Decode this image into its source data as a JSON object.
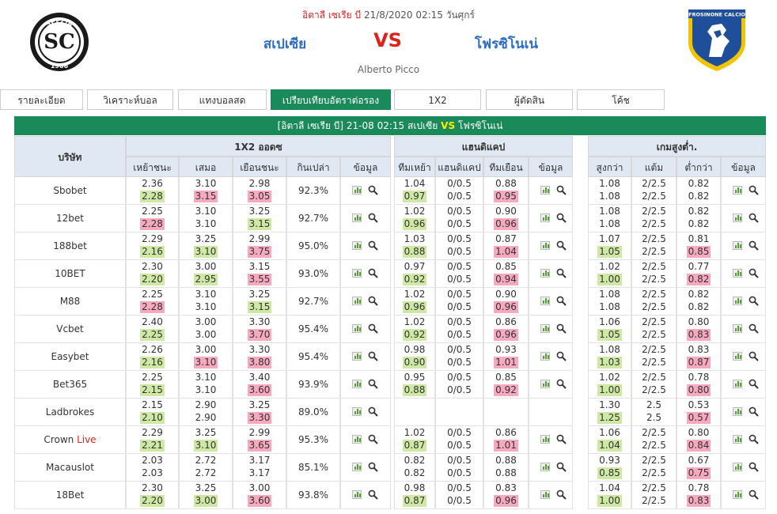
{
  "header": {
    "league": "อิตาลี เซเรีย บี",
    "datetime": "21/8/2020 02:15 วันศุกร์",
    "home_team": "สเปเซีย",
    "vs": "VS",
    "away_team": "โฟรซิโนเน่",
    "stadium": "Alberto Picco",
    "home_logo_text": "SPEZIA",
    "home_logo_year": "1906",
    "away_logo_text": "FROSINONE CALCIO"
  },
  "tabs": [
    {
      "label": "รายละเอียด",
      "active": false
    },
    {
      "label": "วิเคราะห์บอล",
      "active": false
    },
    {
      "label": "แทงบอลสด",
      "active": false
    },
    {
      "label": "เปรียบเทียบอัตราต่อรอง",
      "active": true
    },
    {
      "label": "1X2",
      "active": false
    },
    {
      "label": "ผู้ตัดสิน",
      "active": false
    },
    {
      "label": "โค้ช",
      "active": false
    }
  ],
  "title_bar": {
    "prefix": "[อิตาลี เซเรีย บี]  21-08 02:15  สเปเซีย",
    "vs": "VS",
    "suffix": "โฟรซิโนเน่"
  },
  "table": {
    "company_header": "บริษัท",
    "groups": [
      "1X2 ออดซ",
      "แฮนดิแคป",
      "เกมสูงต่ำ."
    ],
    "sub_headers": [
      "เหย้าชนะ",
      "เสมอ",
      "เยือนชนะ",
      "กินเปล่า",
      "ข้อมูล",
      "ทีมเหย้า",
      "แฮนดิแคป",
      "ทีมเยือน",
      "ข้อมูล",
      "สูงกว่า",
      "แต้ม",
      "ต่ำกว่า",
      "ข้อมูล"
    ],
    "rows": [
      {
        "company": "Sbobet",
        "live": "",
        "x12": [
          [
            "2.36",
            "2.28",
            "up"
          ],
          [
            "3.10",
            "3.15",
            "down"
          ],
          [
            "2.98",
            "3.05",
            "down"
          ]
        ],
        "payout": "92.3%",
        "hcap": [
          [
            "1.04",
            "0.97",
            "up"
          ],
          [
            "0/0.5",
            "0/0.5",
            ""
          ],
          [
            "0.88",
            "0.95",
            "down"
          ]
        ],
        "ou": [
          [
            "1.08",
            "1.08",
            ""
          ],
          [
            "2/2.5",
            "2/2.5",
            ""
          ],
          [
            "0.82",
            "0.82",
            ""
          ]
        ]
      },
      {
        "company": "12bet",
        "live": "",
        "x12": [
          [
            "2.25",
            "2.28",
            "down"
          ],
          [
            "3.10",
            "3.10",
            ""
          ],
          [
            "3.25",
            "3.15",
            "up"
          ]
        ],
        "payout": "92.7%",
        "hcap": [
          [
            "1.02",
            "0.96",
            "up"
          ],
          [
            "0/0.5",
            "0/0.5",
            ""
          ],
          [
            "0.90",
            "0.96",
            "down"
          ]
        ],
        "ou": [
          [
            "1.08",
            "1.08",
            ""
          ],
          [
            "2/2.5",
            "2/2.5",
            ""
          ],
          [
            "0.82",
            "0.82",
            ""
          ]
        ]
      },
      {
        "company": "188bet",
        "live": "",
        "x12": [
          [
            "2.29",
            "2.16",
            "up"
          ],
          [
            "3.25",
            "3.10",
            "up"
          ],
          [
            "2.99",
            "3.75",
            "down"
          ]
        ],
        "payout": "95.0%",
        "hcap": [
          [
            "1.03",
            "0.88",
            "up"
          ],
          [
            "0/0.5",
            "0/0.5",
            ""
          ],
          [
            "0.87",
            "1.04",
            "down"
          ]
        ],
        "ou": [
          [
            "1.07",
            "1.05",
            "up"
          ],
          [
            "2/2.5",
            "2/2.5",
            ""
          ],
          [
            "0.81",
            "0.85",
            "down"
          ]
        ]
      },
      {
        "company": "10BET",
        "live": "",
        "x12": [
          [
            "2.30",
            "2.20",
            "up"
          ],
          [
            "3.00",
            "2.95",
            "up"
          ],
          [
            "3.15",
            "3.55",
            "down"
          ]
        ],
        "payout": "93.0%",
        "hcap": [
          [
            "0.97",
            "0.92",
            "up"
          ],
          [
            "0/0.5",
            "0/0.5",
            ""
          ],
          [
            "0.85",
            "0.94",
            "down"
          ]
        ],
        "ou": [
          [
            "1.02",
            "1.00",
            "up"
          ],
          [
            "2/2.5",
            "2/2.5",
            ""
          ],
          [
            "0.77",
            "0.82",
            "down"
          ]
        ]
      },
      {
        "company": "M88",
        "live": "",
        "x12": [
          [
            "2.25",
            "2.28",
            "down"
          ],
          [
            "3.10",
            "3.10",
            ""
          ],
          [
            "3.25",
            "3.15",
            "up"
          ]
        ],
        "payout": "92.7%",
        "hcap": [
          [
            "1.02",
            "0.96",
            "up"
          ],
          [
            "0/0.5",
            "0/0.5",
            ""
          ],
          [
            "0.90",
            "0.96",
            "down"
          ]
        ],
        "ou": [
          [
            "1.08",
            "1.08",
            ""
          ],
          [
            "2/2.5",
            "2/2.5",
            ""
          ],
          [
            "0.82",
            "0.82",
            ""
          ]
        ]
      },
      {
        "company": "Vcbet",
        "live": "",
        "x12": [
          [
            "2.40",
            "2.25",
            "up"
          ],
          [
            "3.00",
            "3.00",
            ""
          ],
          [
            "3.30",
            "3.70",
            "down"
          ]
        ],
        "payout": "95.4%",
        "hcap": [
          [
            "1.02",
            "0.92",
            "up"
          ],
          [
            "0/0.5",
            "0/0.5",
            ""
          ],
          [
            "0.86",
            "0.96",
            "down"
          ]
        ],
        "ou": [
          [
            "1.06",
            "1.05",
            "up"
          ],
          [
            "2/2.5",
            "2/2.5",
            ""
          ],
          [
            "0.80",
            "0.83",
            "down"
          ]
        ]
      },
      {
        "company": "Easybet",
        "live": "",
        "x12": [
          [
            "2.26",
            "2.16",
            "up"
          ],
          [
            "3.00",
            "3.10",
            "down"
          ],
          [
            "3.30",
            "3.80",
            "down"
          ]
        ],
        "payout": "95.4%",
        "hcap": [
          [
            "0.98",
            "0.90",
            "up"
          ],
          [
            "0/0.5",
            "0/0.5",
            ""
          ],
          [
            "0.93",
            "1.01",
            "down"
          ]
        ],
        "ou": [
          [
            "1.08",
            "1.03",
            "up"
          ],
          [
            "2/2.5",
            "2/2.5",
            ""
          ],
          [
            "0.83",
            "0.87",
            "down"
          ]
        ]
      },
      {
        "company": "Bet365",
        "live": "",
        "x12": [
          [
            "2.25",
            "2.15",
            "up"
          ],
          [
            "3.10",
            "3.10",
            ""
          ],
          [
            "3.40",
            "3.60",
            "down"
          ]
        ],
        "payout": "93.9%",
        "hcap": [
          [
            "0.95",
            "0.88",
            "up"
          ],
          [
            "0/0.5",
            "0/0.5",
            ""
          ],
          [
            "0.85",
            "0.92",
            "down"
          ]
        ],
        "ou": [
          [
            "1.02",
            "1.00",
            "up"
          ],
          [
            "2/2.5",
            "2/2.5",
            ""
          ],
          [
            "0.78",
            "0.80",
            "down"
          ]
        ]
      },
      {
        "company": "Ladbrokes",
        "live": "",
        "x12": [
          [
            "2.15",
            "2.10",
            "up"
          ],
          [
            "2.90",
            "2.90",
            ""
          ],
          [
            "3.25",
            "3.30",
            "down"
          ]
        ],
        "payout": "89.0%",
        "hcap": null,
        "ou": [
          [
            "1.30",
            "1.25",
            "up"
          ],
          [
            "2.5",
            "2.5",
            ""
          ],
          [
            "0.53",
            "0.57",
            "down"
          ]
        ]
      },
      {
        "company": "Crown",
        "live": "Live",
        "x12": [
          [
            "2.29",
            "2.21",
            "up"
          ],
          [
            "3.25",
            "3.10",
            "up"
          ],
          [
            "2.99",
            "3.65",
            "down"
          ]
        ],
        "payout": "95.3%",
        "hcap": [
          [
            "1.02",
            "0.87",
            "up"
          ],
          [
            "0/0.5",
            "0/0.5",
            ""
          ],
          [
            "0.86",
            "1.01",
            "down"
          ]
        ],
        "ou": [
          [
            "1.06",
            "1.04",
            "up"
          ],
          [
            "2/2.5",
            "2/2.5",
            ""
          ],
          [
            "0.80",
            "0.84",
            "down"
          ]
        ]
      },
      {
        "company": "Macauslot",
        "live": "",
        "x12": [
          [
            "2.03",
            "2.03",
            ""
          ],
          [
            "2.72",
            "2.72",
            ""
          ],
          [
            "3.17",
            "3.17",
            ""
          ]
        ],
        "payout": "85.1%",
        "hcap": [
          [
            "0.82",
            "0.82",
            ""
          ],
          [
            "0/0.5",
            "0/0.5",
            ""
          ],
          [
            "0.88",
            "0.88",
            ""
          ]
        ],
        "ou": [
          [
            "0.93",
            "0.85",
            "up"
          ],
          [
            "2/2.5",
            "2/2.5",
            ""
          ],
          [
            "0.67",
            "0.75",
            "down"
          ]
        ]
      },
      {
        "company": "18Bet",
        "live": "",
        "x12": [
          [
            "2.30",
            "2.20",
            "up"
          ],
          [
            "3.25",
            "3.00",
            "up"
          ],
          [
            "3.00",
            "3.60",
            "down"
          ]
        ],
        "payout": "93.8%",
        "hcap": [
          [
            "0.98",
            "0.87",
            "up"
          ],
          [
            "0/0.5",
            "0/0.5",
            ""
          ],
          [
            "0.83",
            "0.96",
            "down"
          ]
        ],
        "ou": [
          [
            "1.04",
            "1.00",
            "up"
          ],
          [
            "2/2.5",
            "2/2.5",
            ""
          ],
          [
            "0.78",
            "0.83",
            "down"
          ]
        ]
      }
    ]
  },
  "colors": {
    "accent": "#1b8a5a",
    "header_bg": "#dfe8f3",
    "up": "#cfe9a4",
    "down": "#f6a9bf",
    "vs": "#e0201b",
    "team": "#2b6cc4"
  },
  "icons": {
    "chart": "bar-chart-icon",
    "search": "magnifier-icon"
  }
}
